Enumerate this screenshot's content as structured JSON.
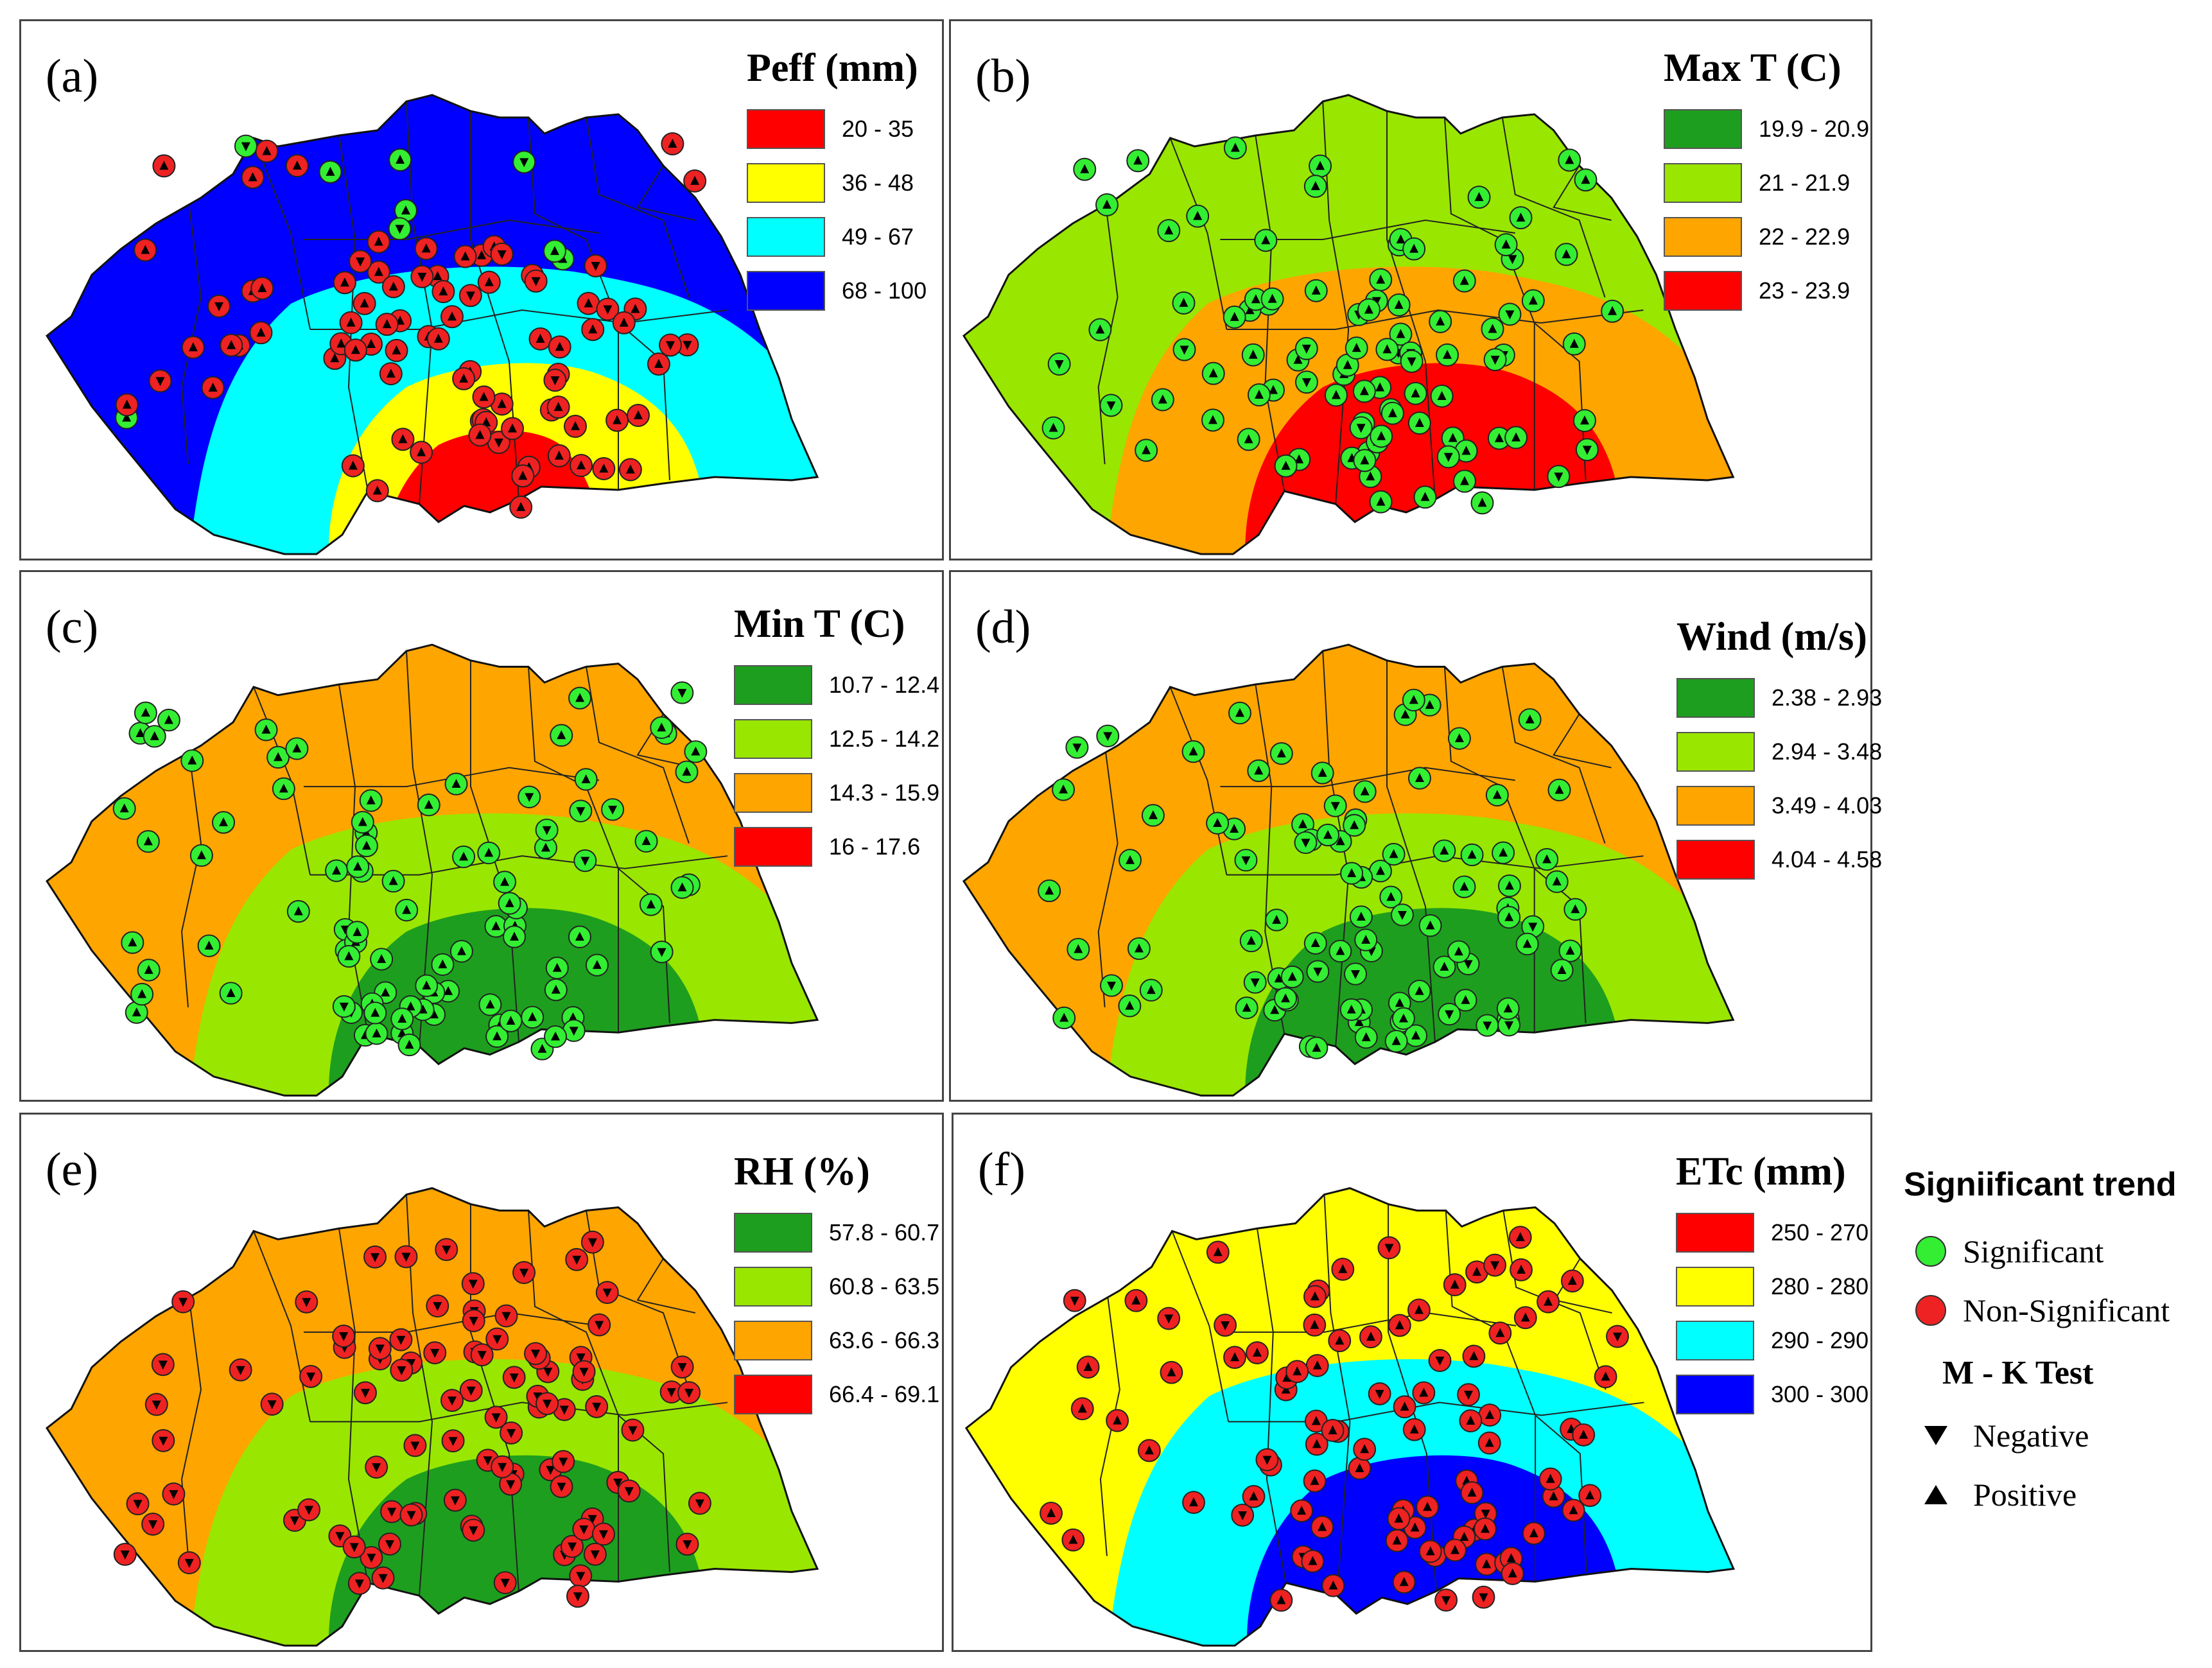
{
  "panels": [
    {
      "label": "(a)",
      "title": "Peff (mm)",
      "classes": [
        {
          "range": "20 - 35",
          "color": "#ff0000"
        },
        {
          "range": "36 - 48",
          "color": "#ffff00"
        },
        {
          "range": "49 - 67",
          "color": "#00ffff"
        },
        {
          "range": "68 - 100",
          "color": "#0000ff"
        }
      ],
      "zone_order": [
        2,
        1,
        0
      ],
      "outer": 3,
      "stations": "mixed"
    },
    {
      "label": "(b)",
      "title": "Max T (C)",
      "classes": [
        {
          "range": "19.9 - 20.9",
          "color": "#1e9e1e"
        },
        {
          "range": "21 - 21.9",
          "color": "#99e600"
        },
        {
          "range": "22 - 22.9",
          "color": "#ffa500"
        },
        {
          "range": "23 - 23.9",
          "color": "#ff0000"
        }
      ],
      "zone_order": [
        2,
        3,
        3
      ],
      "outer": 1,
      "stations": "significant"
    },
    {
      "label": "(c)",
      "title": "Min T (C)",
      "classes": [
        {
          "range": "10.7 - 12.4",
          "color": "#1e9e1e"
        },
        {
          "range": "12.5 - 14.2",
          "color": "#99e600"
        },
        {
          "range": "14.3 - 15.9",
          "color": "#ffa500"
        },
        {
          "range": "16 - 17.6",
          "color": "#ff0000"
        }
      ],
      "zone_order": [
        1,
        0,
        0
      ],
      "outer": 2,
      "stations": "significant"
    },
    {
      "label": "(d)",
      "title": "Wind (m/s)",
      "classes": [
        {
          "range": "2.38 - 2.93",
          "color": "#1e9e1e"
        },
        {
          "range": "2.94 - 3.48",
          "color": "#99e600"
        },
        {
          "range": "3.49 - 4.03",
          "color": "#ffa500"
        },
        {
          "range": "4.04 - 4.58",
          "color": "#ff0000"
        }
      ],
      "zone_order": [
        1,
        0,
        0
      ],
      "outer": 2,
      "stations": "significant"
    },
    {
      "label": "(e)",
      "title": "RH (%)",
      "classes": [
        {
          "range": "57.8 - 60.7",
          "color": "#1e9e1e"
        },
        {
          "range": "60.8 - 63.5",
          "color": "#99e600"
        },
        {
          "range": "63.6 - 66.3",
          "color": "#ffa500"
        },
        {
          "range": "66.4 - 69.1",
          "color": "#ff0000"
        }
      ],
      "zone_order": [
        1,
        0,
        0
      ],
      "outer": 2,
      "stations": "nonsignificant"
    },
    {
      "label": "(f)",
      "title": "ETc (mm)",
      "classes": [
        {
          "range": "250 - 270",
          "color": "#ff0000"
        },
        {
          "range": "280 - 280",
          "color": "#ffff00"
        },
        {
          "range": "290 - 290",
          "color": "#00ffff"
        },
        {
          "range": "300 - 300",
          "color": "#0000ff"
        }
      ],
      "zone_order": [
        2,
        3,
        3
      ],
      "outer": 1,
      "stations": "nonsignificant"
    }
  ],
  "side_legend": {
    "title": "Signiificant trend",
    "significant": {
      "label": "Significant",
      "color": "#33ee33"
    },
    "nonsignificant": {
      "label": "Non-Significant",
      "color": "#ee2222"
    },
    "mk_title": "M - K Test",
    "negative": "Negative",
    "positive": "Positive"
  }
}
